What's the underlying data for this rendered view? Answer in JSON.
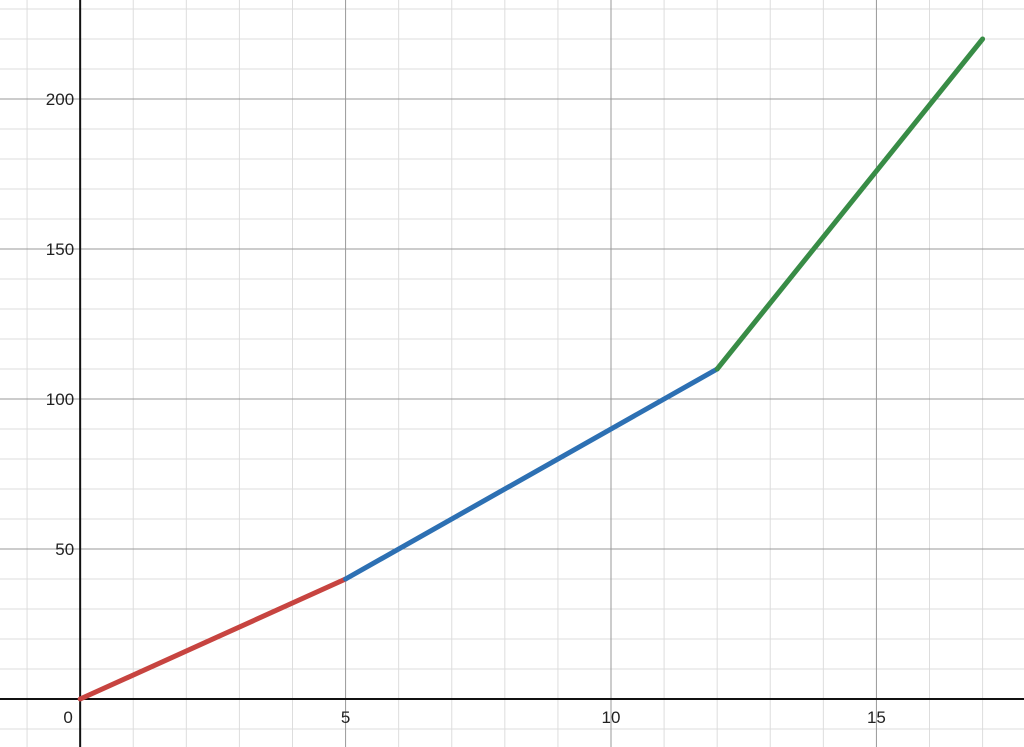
{
  "chart_data": {
    "type": "line",
    "title": "",
    "xlabel": "",
    "ylabel": "",
    "xlim": [
      -1.51,
      17.78
    ],
    "ylim": [
      -16,
      233
    ],
    "grid": true,
    "minor_grid": {
      "x_step": 1,
      "y_step": 10
    },
    "x_ticks": [
      0,
      5,
      10,
      15
    ],
    "y_ticks": [
      50,
      100,
      150,
      200
    ],
    "x_tick_labels": [
      "0",
      "5",
      "10",
      "15"
    ],
    "y_tick_labels": [
      "50",
      "100",
      "150",
      "200"
    ],
    "series": [
      {
        "color": "#c74440",
        "x": [
          0,
          5
        ],
        "y": [
          0,
          40
        ]
      },
      {
        "color": "#2d70b3",
        "x": [
          5,
          12
        ],
        "y": [
          40,
          110
        ]
      },
      {
        "color": "#388c46",
        "x": [
          12,
          17
        ],
        "y": [
          110,
          220
        ]
      }
    ]
  }
}
